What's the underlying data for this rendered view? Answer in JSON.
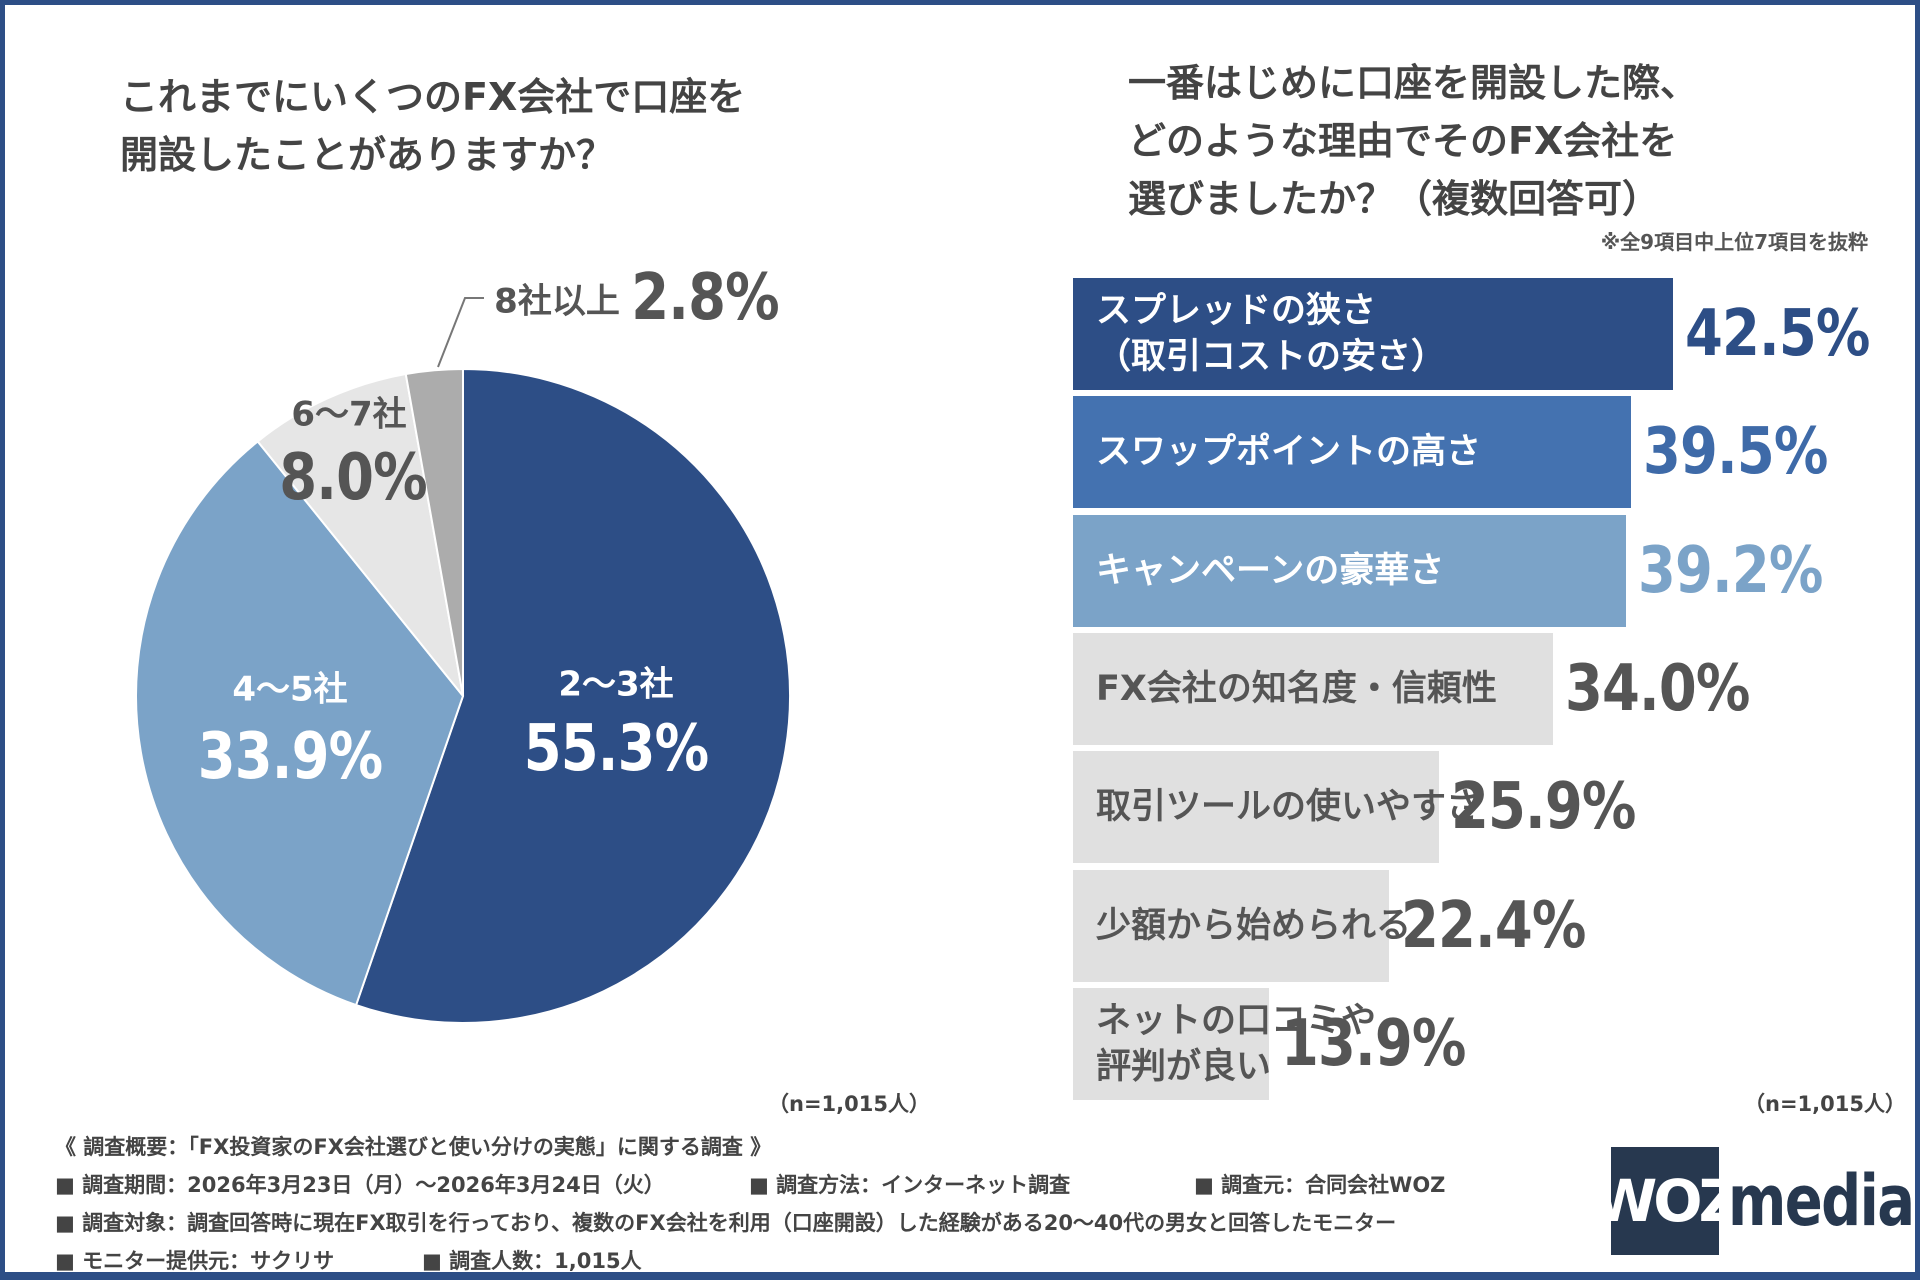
{
  "pie": {
    "title_lines": [
      "これまでにいくつのFX会社で口座を",
      "開設したことがありますか？"
    ],
    "sample_size": "（n=1,015人）"
  },
  "bar": {
    "title_lines": [
      "一番はじめに口座を開設した際、",
      "どのような理由でそのFX会社を",
      "選びましたか？（複数回答可）"
    ],
    "note": "※全9項目中上位7項目を抜粋",
    "sample_size": "（n=1,015人）"
  },
  "chart_data": [
    {
      "type": "pie",
      "title": "これまでにいくつのFX会社で口座を開設したことがありますか？",
      "categories": [
        "2〜3社",
        "4〜5社",
        "6〜7社",
        "8社以上"
      ],
      "values": [
        55.3,
        33.9,
        8.0,
        2.8
      ],
      "value_labels": [
        "55.3%",
        "33.9%",
        "8.0%",
        "2.8%"
      ],
      "colors": [
        "#2d4e86",
        "#7ba3c8",
        "#e6e6e6",
        "#acacac"
      ],
      "start": "top",
      "direction": "clockwise"
    },
    {
      "type": "bar",
      "orientation": "horizontal",
      "title": "一番はじめに口座を開設した際、どのような理由でそのFX会社を選びましたか？（複数回答可）",
      "categories": [
        "スプレッドの狭さ\n（取引コストの安さ）",
        "スワップポイントの高さ",
        "キャンペーンの豪華さ",
        "FX会社の知名度・信頼性",
        "取引ツールの使いやすさ",
        "少額から始められる",
        "ネットの口コミや\n評判が良い"
      ],
      "values": [
        42.5,
        39.5,
        39.2,
        34.0,
        25.9,
        22.4,
        13.9
      ],
      "value_labels": [
        "42.5%",
        "39.5%",
        "39.2%",
        "34.0%",
        "25.9%",
        "22.4%",
        "13.9%"
      ],
      "bar_colors": [
        "#2d4e86",
        "#4472b0",
        "#7ba3c8",
        "#e0e0e0",
        "#e0e0e0",
        "#e0e0e0",
        "#e0e0e0"
      ],
      "label_colors": [
        "#ffffff",
        "#ffffff",
        "#ffffff",
        "#555555",
        "#555555",
        "#555555",
        "#555555"
      ],
      "value_colors": [
        "#2d4e86",
        "#3e6aa8",
        "#7ba3c8",
        "#555555",
        "#555555",
        "#555555",
        "#555555"
      ],
      "grid": false
    }
  ],
  "footer": {
    "heading": "《 調査概要：「FX投資家のFX会社選びと使い分けの実態」に関する調査 》",
    "period": "■ 調査期間：2026年3月23日（月）〜2026年3月24日（火）",
    "method": "■ 調査方法：インターネット調査",
    "source": "■ 調査元：合同会社WOZ",
    "target": "■ 調査対象：調査回答時に現在FX取引を行っており、複数のFX会社を利用（口座開設）した経験がある20〜40代の男女と回答したモニター",
    "provider": "■ モニター提供元：サクリサ",
    "count": "■ 調査人数：1,015人"
  },
  "logo": {
    "box_text": "WOZ",
    "text": "media"
  }
}
